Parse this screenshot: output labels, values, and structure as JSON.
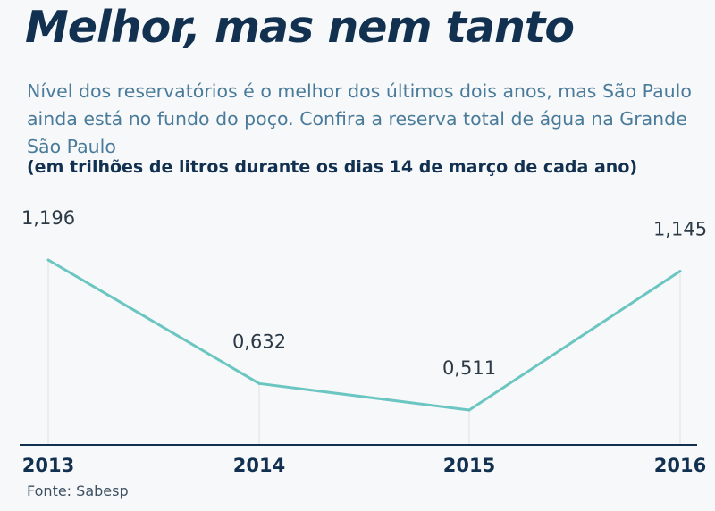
{
  "title": "Melhor, mas nem tanto",
  "subtitle": "Nível dos reservatórios é o melhor dos últimos dois anos, mas São Paulo ainda está no fundo do poço. Confira a reserva total de água na Grande São Paulo",
  "unit_note": "(em trilhões de litros durante os dias 14 de março de cada ano)",
  "source": "Fonte: Sabesp",
  "colors": {
    "line": "#6bc6c2",
    "axis": "#12304f",
    "gridline": "#dcdfe2",
    "title": "#12304f",
    "subtitle": "#4a7b9b"
  },
  "chart_data": {
    "type": "line",
    "categories": [
      "2013",
      "2014",
      "2015",
      "2016"
    ],
    "values": [
      1.196,
      0.632,
      0.511,
      1.145
    ],
    "data_labels": [
      "1,196",
      "0,632",
      "0,511",
      "1,145"
    ],
    "grid": "vertical",
    "legend": "none"
  }
}
